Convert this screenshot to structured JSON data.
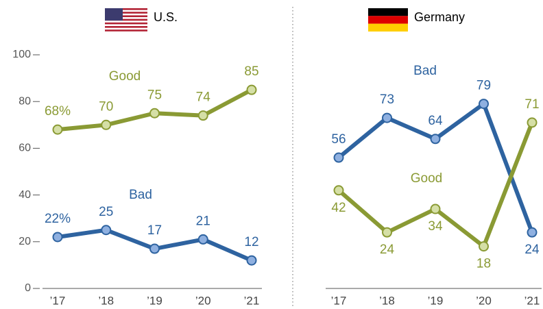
{
  "chart_data": [
    {
      "type": "line",
      "title": "U.S.",
      "categories": [
        "’17",
        "’18",
        "’19",
        "’20",
        "’21"
      ],
      "series": [
        {
          "name": "Good",
          "color": "#8a9a34",
          "values": [
            68,
            70,
            75,
            74,
            85
          ],
          "value_labels": [
            "68%",
            "70",
            "75",
            "74",
            "85"
          ]
        },
        {
          "name": "Bad",
          "color": "#2e63a0",
          "values": [
            22,
            25,
            17,
            21,
            12
          ],
          "value_labels": [
            "22%",
            "25",
            "17",
            "21",
            "12"
          ]
        }
      ],
      "ylim": [
        0,
        100
      ],
      "yticks": [
        0,
        20,
        40,
        60,
        80,
        100
      ]
    },
    {
      "type": "line",
      "title": "Germany",
      "categories": [
        "’17",
        "’18",
        "’19",
        "’20",
        "’21"
      ],
      "series": [
        {
          "name": "Bad",
          "color": "#2e63a0",
          "values": [
            56,
            73,
            64,
            79,
            24
          ]
        },
        {
          "name": "Good",
          "color": "#8a9a34",
          "values": [
            42,
            24,
            34,
            18,
            71
          ]
        }
      ],
      "ylim": [
        0,
        100
      ]
    }
  ]
}
